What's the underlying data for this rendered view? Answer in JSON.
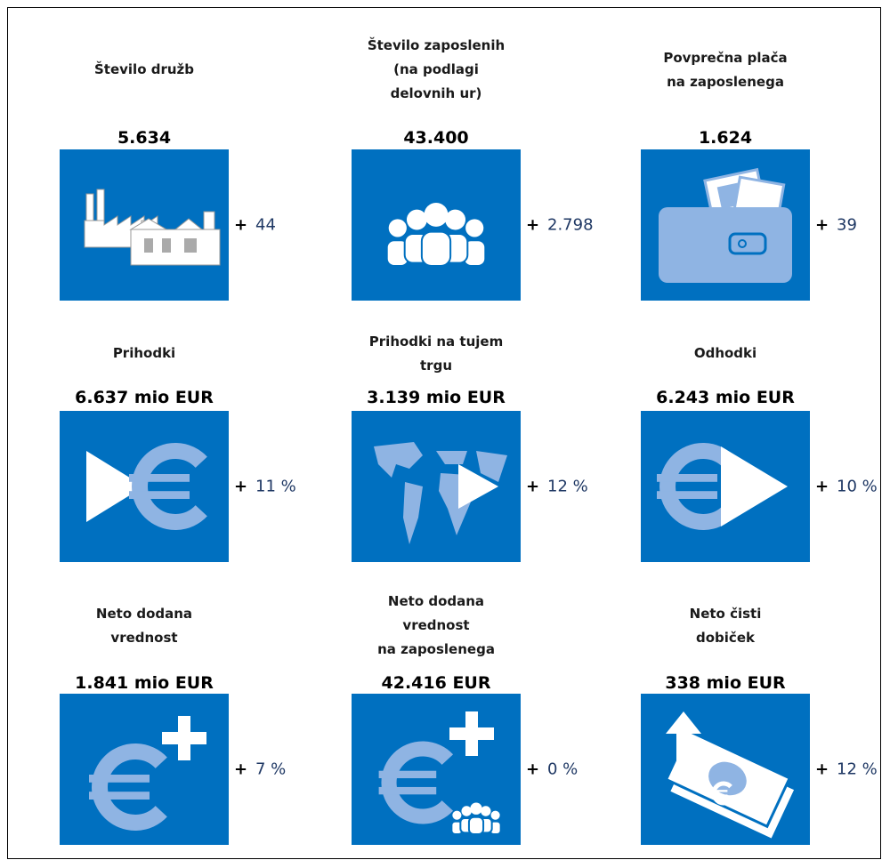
{
  "items": [
    {
      "title": [
        "Število družb"
      ],
      "value": "5.634",
      "sign": "+",
      "change": "44"
    },
    {
      "title": [
        "Število zaposlenih",
        "(na podlagi",
        "delovnih ur)"
      ],
      "value": "43.400",
      "sign": "+",
      "change": "2.798"
    },
    {
      "title": [
        "Povprečna plača",
        "na zaposlenega"
      ],
      "value": "1.624",
      "sign": "+",
      "change": "39"
    },
    {
      "title": [
        "Prihodki"
      ],
      "value": "6.637 mio EUR",
      "sign": "+",
      "change": "11 %"
    },
    {
      "title": [
        "Prihodki na tujem",
        "trgu"
      ],
      "value": "3.139 mio EUR",
      "sign": "+",
      "change": "12 %"
    },
    {
      "title": [
        "Odhodki"
      ],
      "value": "6.243 mio EUR",
      "sign": "+",
      "change": "10 %"
    },
    {
      "title": [
        "Neto dodana",
        "vrednost"
      ],
      "value": "1.841 mio EUR",
      "sign": "+",
      "change": "7 %"
    },
    {
      "title": [
        "Neto dodana",
        "vrednost",
        "na zaposlenega"
      ],
      "value": "42.416 EUR",
      "sign": "+",
      "change": "0 %"
    },
    {
      "title": [
        "Neto čisti",
        "dobiček"
      ],
      "value": "338 mio EUR",
      "sign": "+",
      "change": "12 %"
    }
  ]
}
